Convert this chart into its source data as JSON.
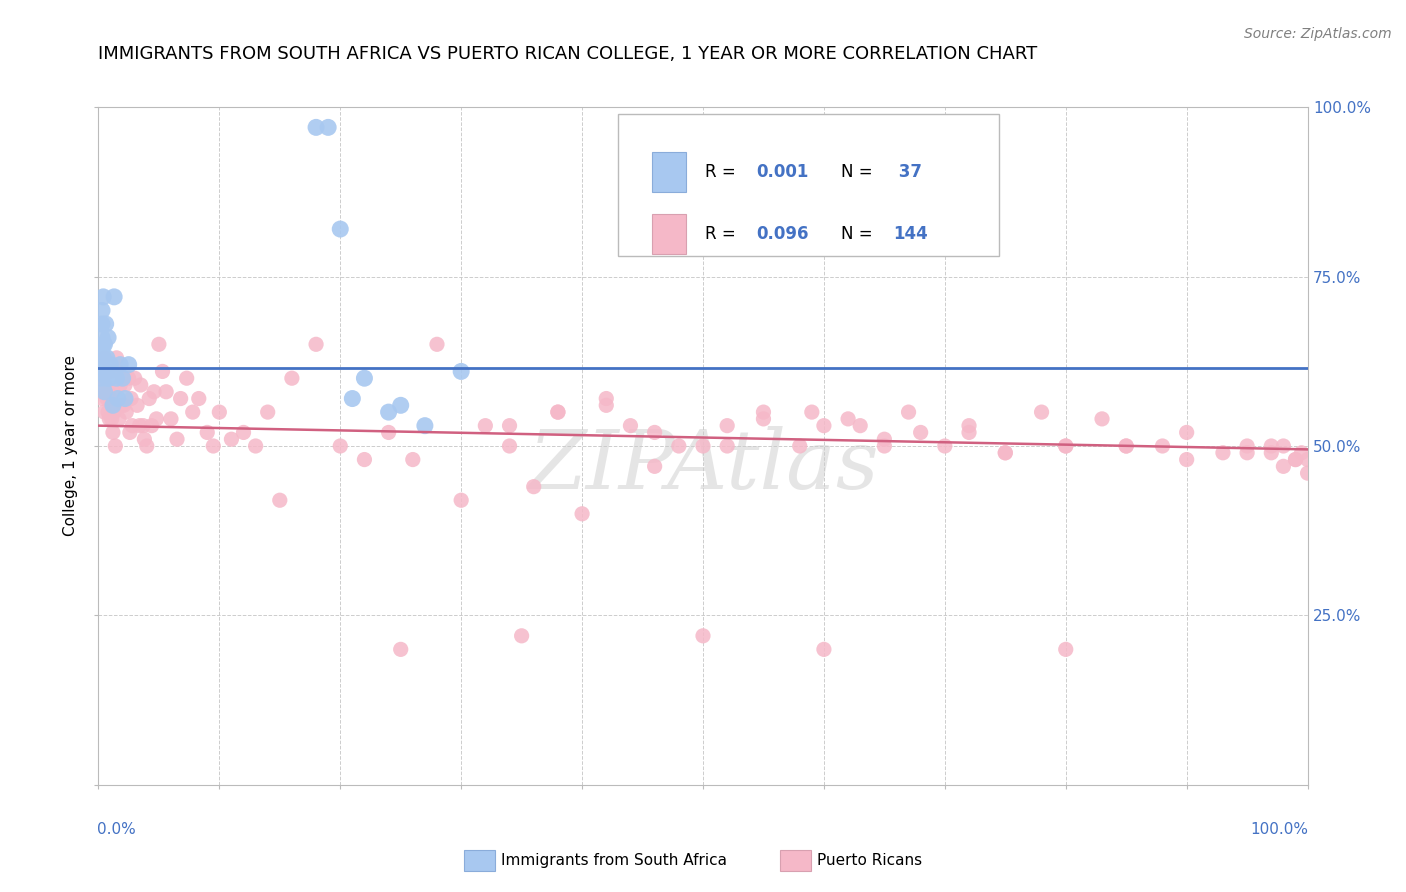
{
  "title": "IMMIGRANTS FROM SOUTH AFRICA VS PUERTO RICAN COLLEGE, 1 YEAR OR MORE CORRELATION CHART",
  "source": "Source: ZipAtlas.com",
  "ylabel": "College, 1 year or more",
  "legend_blue_label": "Immigrants from South Africa",
  "legend_pink_label": "Puerto Ricans",
  "blue_color": "#a8c8f0",
  "pink_color": "#f5b8c8",
  "line_blue": "#4472c4",
  "line_pink": "#d06080",
  "watermark": "ZIPAtlas",
  "blue_scatter_x": [
    0.001,
    0.002,
    0.002,
    0.003,
    0.003,
    0.003,
    0.003,
    0.004,
    0.004,
    0.004,
    0.005,
    0.005,
    0.005,
    0.006,
    0.006,
    0.007,
    0.007,
    0.008,
    0.009,
    0.01,
    0.012,
    0.013,
    0.015,
    0.016,
    0.018,
    0.02,
    0.022,
    0.025,
    0.18,
    0.19,
    0.2,
    0.21,
    0.22,
    0.24,
    0.25,
    0.27,
    0.3
  ],
  "blue_scatter_y": [
    0.61,
    0.63,
    0.6,
    0.64,
    0.66,
    0.68,
    0.7,
    0.65,
    0.63,
    0.72,
    0.61,
    0.58,
    0.65,
    0.62,
    0.68,
    0.6,
    0.63,
    0.66,
    0.6,
    0.62,
    0.56,
    0.72,
    0.6,
    0.57,
    0.62,
    0.6,
    0.57,
    0.62,
    0.97,
    0.97,
    0.82,
    0.57,
    0.6,
    0.55,
    0.56,
    0.53,
    0.61
  ],
  "pink_scatter_x": [
    0.002,
    0.003,
    0.004,
    0.005,
    0.005,
    0.006,
    0.007,
    0.007,
    0.008,
    0.008,
    0.009,
    0.01,
    0.01,
    0.011,
    0.012,
    0.012,
    0.013,
    0.014,
    0.015,
    0.016,
    0.017,
    0.018,
    0.019,
    0.02,
    0.021,
    0.022,
    0.023,
    0.025,
    0.026,
    0.027,
    0.028,
    0.03,
    0.032,
    0.034,
    0.035,
    0.037,
    0.038,
    0.04,
    0.042,
    0.044,
    0.046,
    0.048,
    0.05,
    0.053,
    0.056,
    0.06,
    0.065,
    0.068,
    0.073,
    0.078,
    0.083,
    0.09,
    0.095,
    0.1,
    0.11,
    0.12,
    0.13,
    0.14,
    0.16,
    0.18,
    0.2,
    0.22,
    0.24,
    0.26,
    0.28,
    0.3,
    0.32,
    0.34,
    0.36,
    0.38,
    0.4,
    0.42,
    0.44,
    0.46,
    0.48,
    0.5,
    0.52,
    0.55,
    0.58,
    0.6,
    0.63,
    0.65,
    0.67,
    0.7,
    0.72,
    0.75,
    0.78,
    0.8,
    0.83,
    0.85,
    0.88,
    0.9,
    0.93,
    0.95,
    0.97,
    0.98,
    0.99,
    0.995,
    1.0,
    1.0,
    0.34,
    0.38,
    0.42,
    0.46,
    0.52,
    0.55,
    0.59,
    0.62,
    0.65,
    0.68,
    0.72,
    0.75,
    0.8,
    0.85,
    0.9,
    0.95,
    0.97,
    0.98,
    0.99,
    0.15,
    0.35,
    0.25,
    0.5,
    0.6,
    0.8
  ],
  "pink_scatter_y": [
    0.6,
    0.57,
    0.58,
    0.55,
    0.63,
    0.59,
    0.57,
    0.61,
    0.55,
    0.58,
    0.54,
    0.61,
    0.57,
    0.54,
    0.58,
    0.52,
    0.55,
    0.5,
    0.63,
    0.61,
    0.54,
    0.59,
    0.56,
    0.6,
    0.56,
    0.59,
    0.55,
    0.6,
    0.52,
    0.57,
    0.53,
    0.6,
    0.56,
    0.53,
    0.59,
    0.53,
    0.51,
    0.5,
    0.57,
    0.53,
    0.58,
    0.54,
    0.65,
    0.61,
    0.58,
    0.54,
    0.51,
    0.57,
    0.6,
    0.55,
    0.57,
    0.52,
    0.5,
    0.55,
    0.51,
    0.52,
    0.5,
    0.55,
    0.6,
    0.65,
    0.5,
    0.48,
    0.52,
    0.48,
    0.65,
    0.42,
    0.53,
    0.5,
    0.44,
    0.55,
    0.4,
    0.57,
    0.53,
    0.47,
    0.5,
    0.5,
    0.5,
    0.55,
    0.5,
    0.53,
    0.53,
    0.51,
    0.55,
    0.5,
    0.53,
    0.49,
    0.55,
    0.5,
    0.54,
    0.5,
    0.5,
    0.52,
    0.49,
    0.5,
    0.49,
    0.5,
    0.48,
    0.49,
    0.46,
    0.48,
    0.53,
    0.55,
    0.56,
    0.52,
    0.53,
    0.54,
    0.55,
    0.54,
    0.5,
    0.52,
    0.52,
    0.49,
    0.5,
    0.5,
    0.48,
    0.49,
    0.5,
    0.47,
    0.48,
    0.42,
    0.22,
    0.2,
    0.22,
    0.2,
    0.2
  ],
  "xlim": [
    0.0,
    1.0
  ],
  "ylim": [
    0.0,
    1.0
  ],
  "blue_line_x": [
    0.0,
    1.0
  ],
  "blue_line_y": [
    0.615,
    0.615
  ],
  "pink_line_x": [
    0.0,
    1.0
  ],
  "pink_line_y": [
    0.53,
    0.495
  ],
  "background_color": "#ffffff",
  "grid_color": "#c8c8c8",
  "axis_label_color": "#4472c4",
  "title_fontsize": 13,
  "watermark_text": "ZIPAtlas"
}
